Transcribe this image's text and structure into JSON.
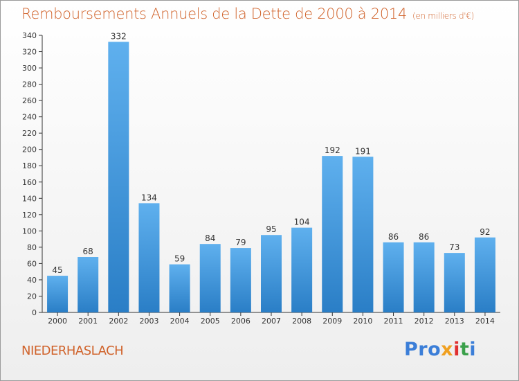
{
  "header": {
    "title": "Remboursements Annuels de la Dette de 2000 à 2014",
    "unit": "(en milliers d'€)"
  },
  "footer": {
    "place": "NIEDERHASLACH",
    "logo": "Proxiti",
    "logo_letters": [
      "Pro",
      "x",
      "i",
      "t",
      "i"
    ]
  },
  "colors": {
    "title": "#d0622a",
    "bar_light": "#5fb0ee",
    "bar_dark": "#2a7ec6",
    "axis": "#333333"
  },
  "chart_data": {
    "type": "bar",
    "title": "Remboursements Annuels de la Dette de 2000 à 2014",
    "subtitle": "(en milliers d'€)",
    "xlabel": "",
    "ylabel": "",
    "categories": [
      "2000",
      "2001",
      "2002",
      "2003",
      "2004",
      "2005",
      "2006",
      "2007",
      "2008",
      "2009",
      "2010",
      "2011",
      "2012",
      "2013",
      "2014"
    ],
    "values": [
      45,
      68,
      332,
      134,
      59,
      84,
      79,
      95,
      104,
      192,
      191,
      86,
      86,
      73,
      92
    ],
    "ylim": [
      0,
      340
    ],
    "yticks": [
      0,
      20,
      40,
      60,
      80,
      100,
      120,
      140,
      160,
      180,
      200,
      220,
      240,
      260,
      280,
      300,
      320,
      340
    ],
    "grid": false,
    "legend": "none",
    "data_labels": true
  }
}
